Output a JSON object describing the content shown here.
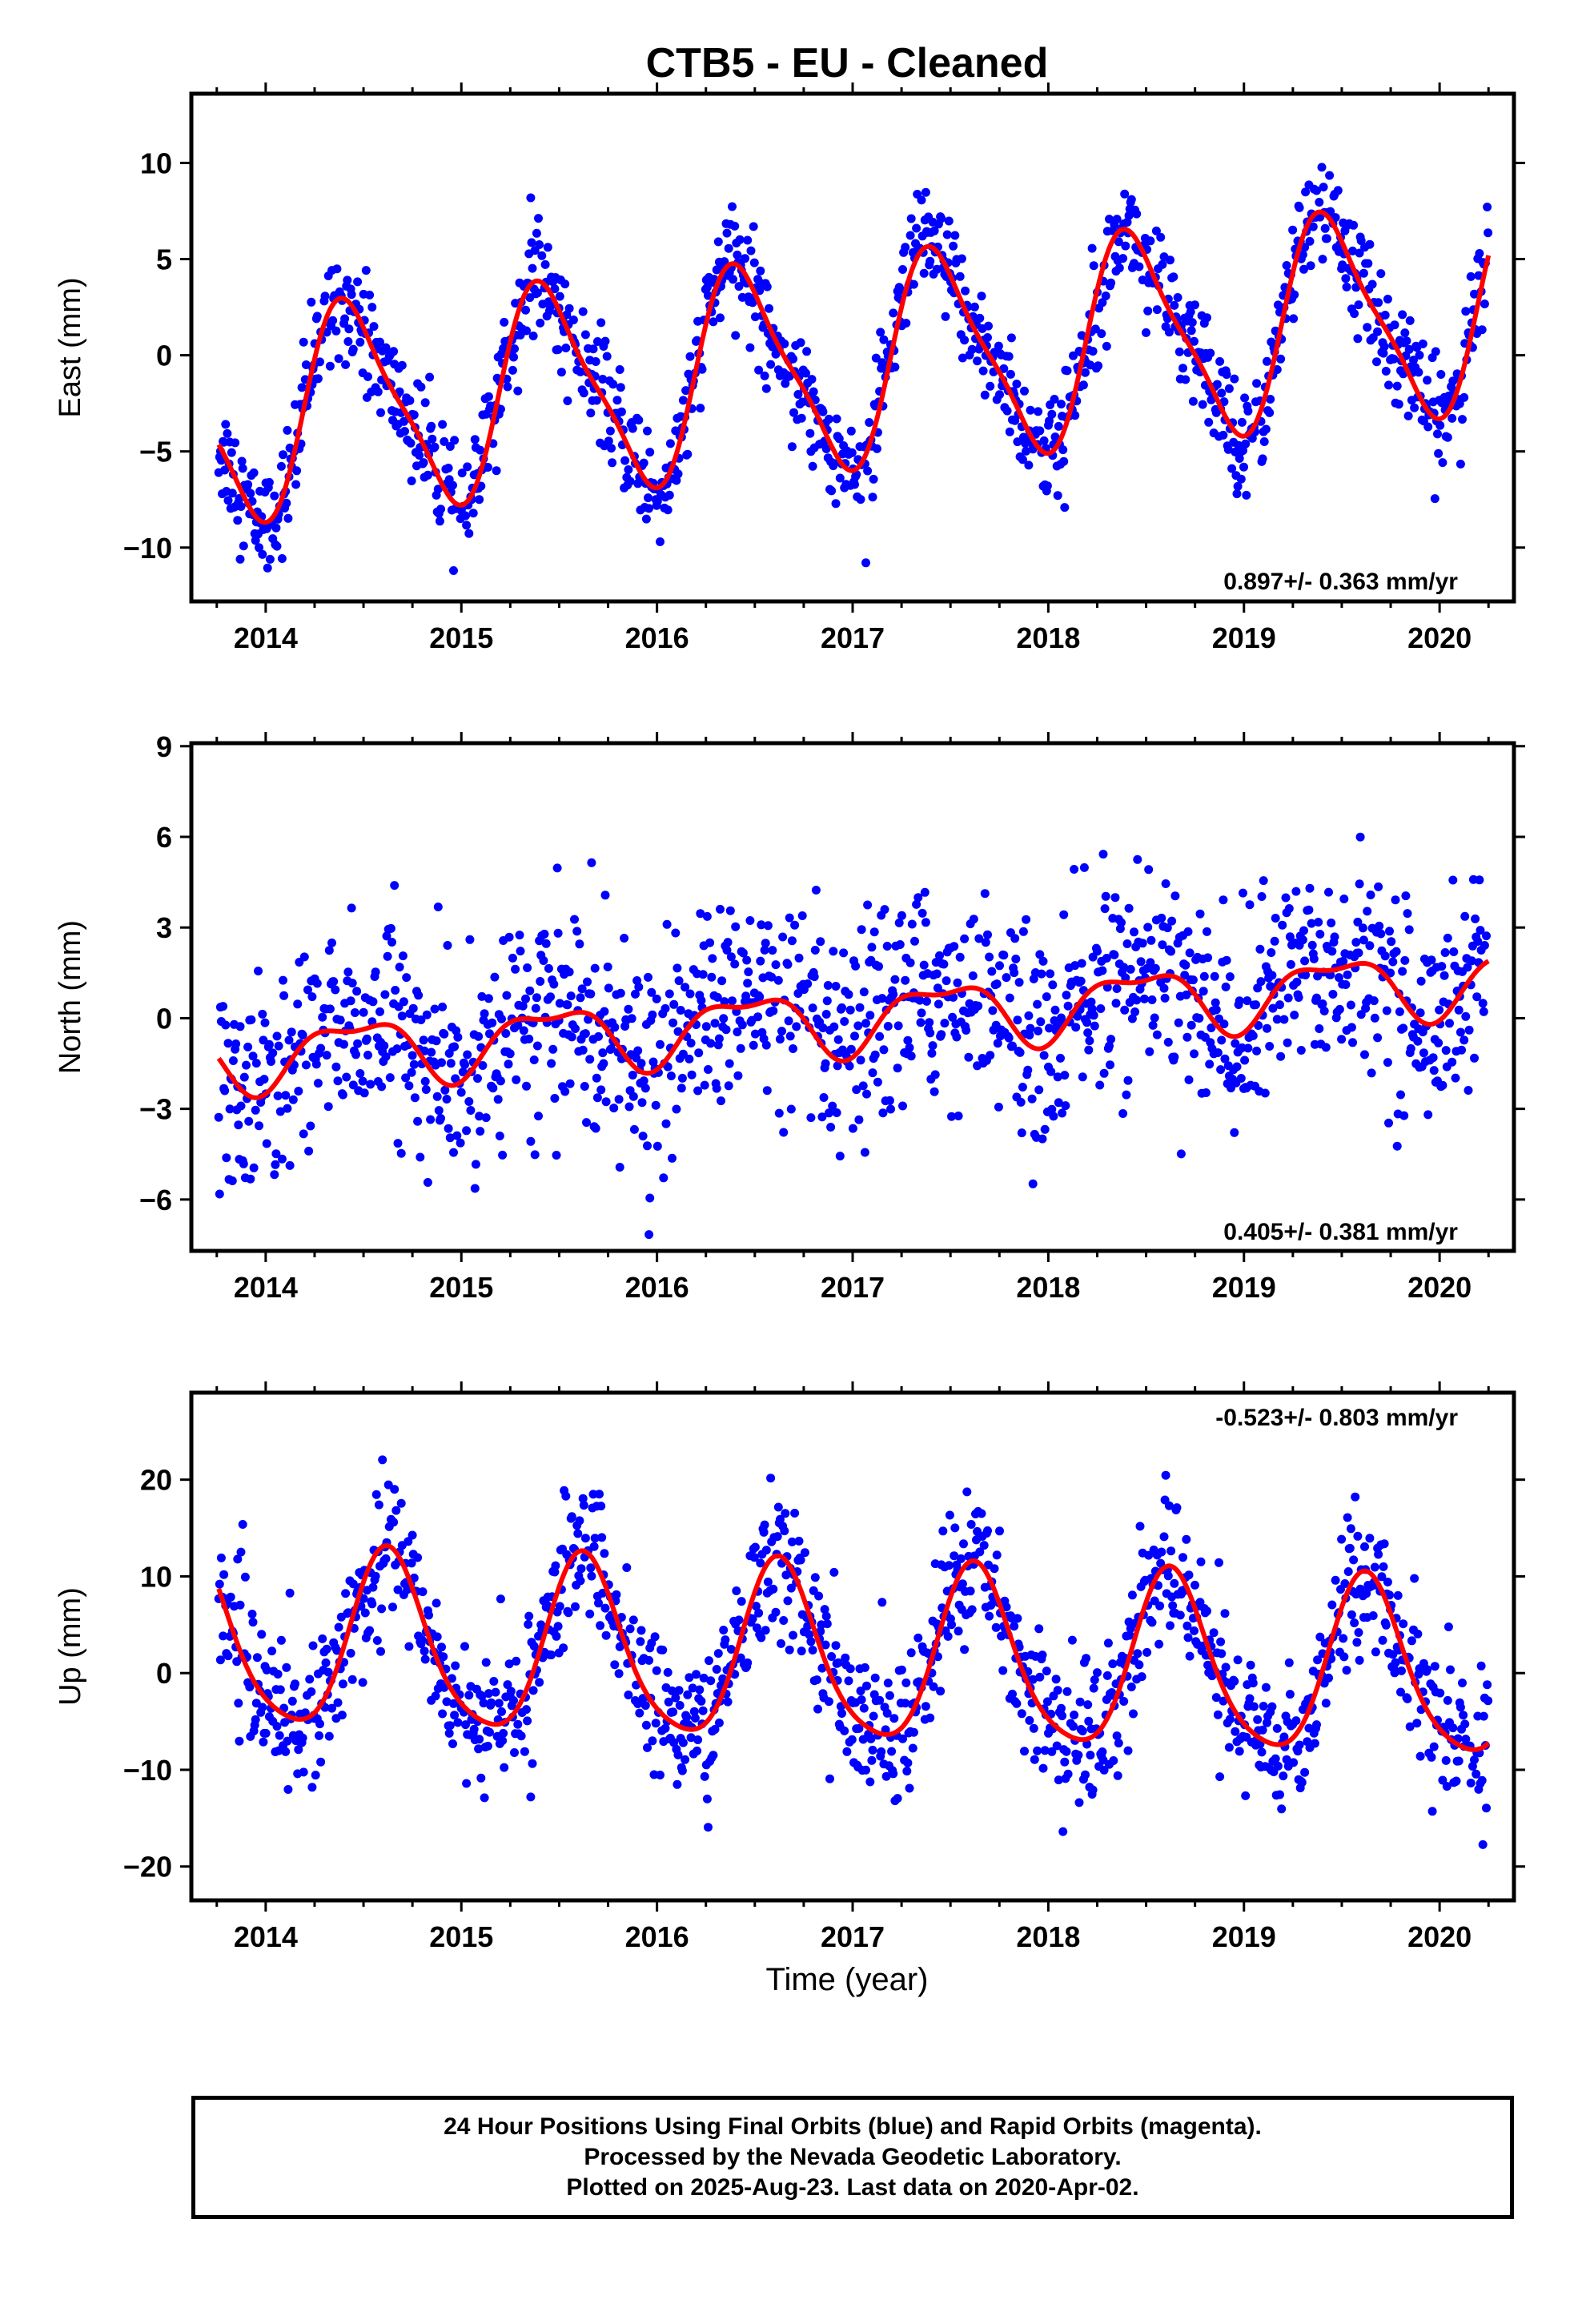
{
  "title": "CTB5  - EU - Cleaned",
  "x_axis_label": "Time (year)",
  "caption": {
    "line1": "24 Hour Positions Using Final Orbits (blue) and Rapid Orbits (magenta).",
    "line2": "Processed by the Nevada Geodetic Laboratory.",
    "line3": "Plotted on 2025-Aug-23. Last data on 2020-Apr-02."
  },
  "colors": {
    "data_points": "#0000ff",
    "model_curve": "#ff0000",
    "rapid_orbits": "#ff00ff"
  },
  "chart_data": [
    {
      "type": "scatter",
      "ylabel": "East (mm)",
      "rate_text": "0.897+/- 0.363 mm/yr",
      "xlim": [
        2013.62,
        2020.38
      ],
      "ylim": [
        -12.8,
        13.6
      ],
      "xticks": [
        2014,
        2015,
        2016,
        2017,
        2018,
        2019,
        2020
      ],
      "yticks": [
        -10,
        -5,
        0,
        5,
        10
      ],
      "ytick_labels": [
        "−10",
        "−5",
        "0",
        "5",
        "10"
      ],
      "series": [
        {
          "kind": "points",
          "color": "#0000ff",
          "annual_peak_phase": 0.44,
          "start": 2013.76,
          "end": 2020.25,
          "noise_sd": 1.4
        },
        {
          "kind": "line",
          "color": "#ff0000",
          "model": {
            "intercept": -0.4,
            "rate": 0.897,
            "ref": 2017,
            "annual_amp": 5.2,
            "phase": 0.44,
            "semi_amp": 1.2,
            "semi_phase": 0.32
          }
        }
      ]
    },
    {
      "type": "scatter",
      "ylabel": "North (mm)",
      "rate_text": "0.405+/- 0.381 mm/yr",
      "xlim": [
        2013.62,
        2020.38
      ],
      "ylim": [
        -7.7,
        9.1
      ],
      "xticks": [
        2014,
        2015,
        2016,
        2017,
        2018,
        2019,
        2020
      ],
      "yticks": [
        -6,
        -3,
        0,
        3,
        6,
        9
      ],
      "ytick_labels": [
        "−6",
        "−3",
        "0",
        "3",
        "6",
        "9"
      ],
      "series": [
        {
          "kind": "points",
          "color": "#0000ff",
          "start": 2013.76,
          "end": 2020.25,
          "noise_sd": 1.7
        },
        {
          "kind": "line",
          "color": "#ff0000",
          "model": {
            "intercept": 0.0,
            "rate": 0.405,
            "ref": 2017,
            "annual_amp": 1.0,
            "phase": 0.46,
            "semi_amp": 0.4,
            "semi_phase": 0.2
          }
        }
      ]
    },
    {
      "type": "scatter",
      "ylabel": "Up (mm)",
      "rate_text": "-0.523+/- 0.803 mm/yr",
      "xlim": [
        2013.62,
        2020.38
      ],
      "ylim": [
        -23.5,
        29
      ],
      "xticks": [
        2014,
        2015,
        2016,
        2017,
        2018,
        2019,
        2020
      ],
      "yticks": [
        -20,
        -10,
        0,
        10,
        20
      ],
      "ytick_labels": [
        "−20",
        "−10",
        "0",
        "10",
        "20"
      ],
      "series": [
        {
          "kind": "points",
          "color": "#0000ff",
          "start": 2013.76,
          "end": 2020.25,
          "noise_sd": 3.6
        },
        {
          "kind": "line",
          "color": "#ff0000",
          "model": {
            "intercept": 1.5,
            "rate": -0.523,
            "ref": 2017,
            "annual_amp": 9.0,
            "phase": 0.63,
            "semi_amp": 1.5,
            "semi_phase": 0.1
          }
        }
      ]
    }
  ]
}
